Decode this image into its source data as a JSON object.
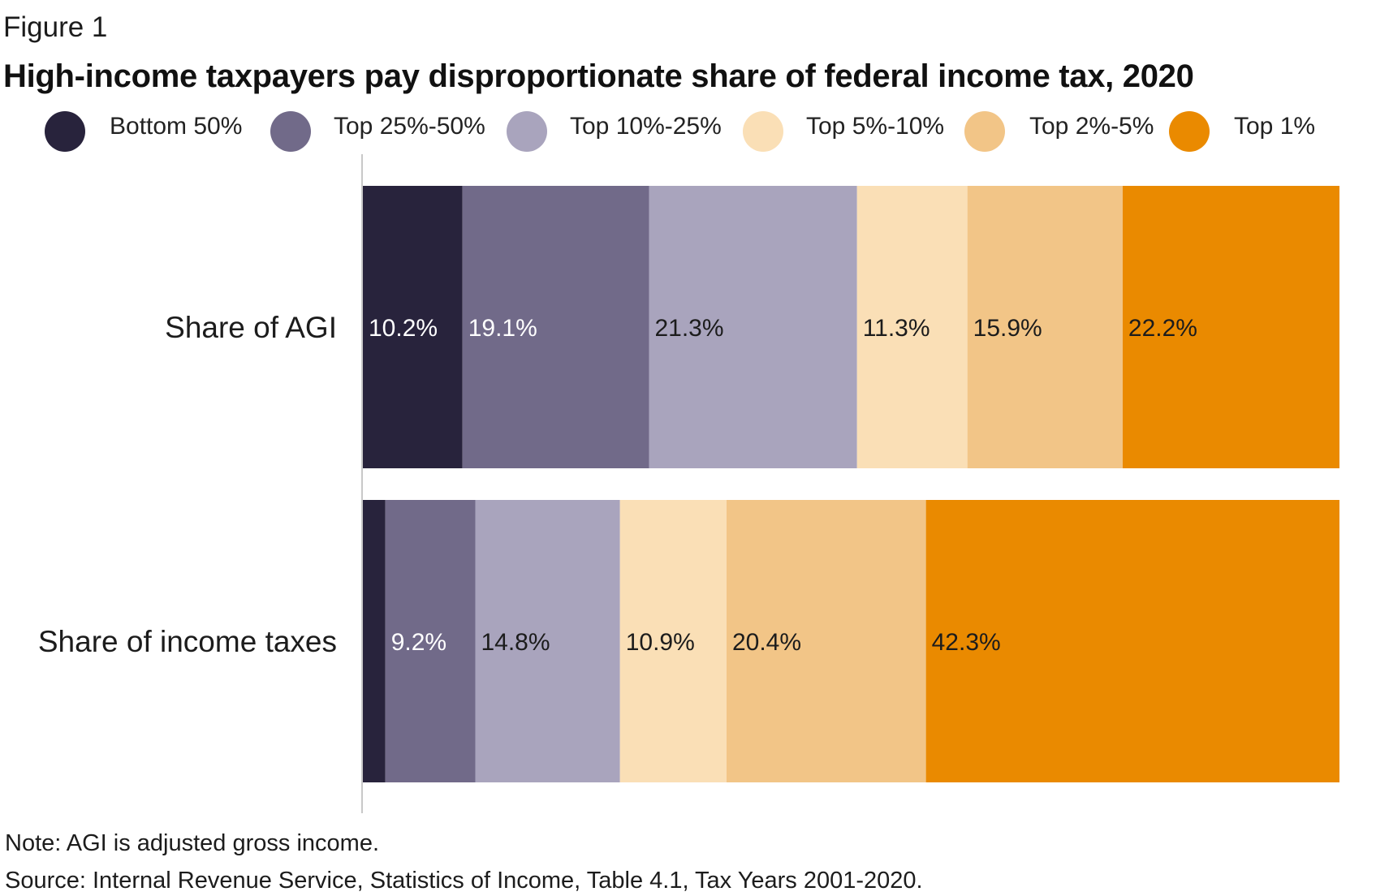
{
  "figure_label": "Figure 1",
  "title": "High-income taxpayers pay disproportionate share of federal income tax, 2020",
  "legend": [
    {
      "label": "Bottom 50%",
      "color": "#28233c"
    },
    {
      "label": "Top 25%-50%",
      "color": "#716a89"
    },
    {
      "label": "Top 10%-25%",
      "color": "#a9a4bd"
    },
    {
      "label": "Top 5%-10%",
      "color": "#fadfb6"
    },
    {
      "label": "Top 2%-5%",
      "color": "#f2c587"
    },
    {
      "label": "Top 1%",
      "color": "#ea8a00"
    }
  ],
  "chart_data": {
    "type": "bar",
    "orientation": "horizontal",
    "stacked": true,
    "categories": [
      "Share of AGI",
      "Share of income taxes"
    ],
    "series": [
      {
        "name": "Bottom 50%",
        "values": [
          10.2,
          2.3
        ],
        "labels": [
          "10.2%",
          ""
        ]
      },
      {
        "name": "Top 25%-50%",
        "values": [
          19.1,
          9.2
        ],
        "labels": [
          "19.1%",
          "9.2%"
        ]
      },
      {
        "name": "Top 10%-25%",
        "values": [
          21.3,
          14.8
        ],
        "labels": [
          "21.3%",
          "14.8%"
        ]
      },
      {
        "name": "Top 5%-10%",
        "values": [
          11.3,
          10.9
        ],
        "labels": [
          "11.3%",
          "10.9%"
        ]
      },
      {
        "name": "Top 2%-5%",
        "values": [
          15.9,
          20.4
        ],
        "labels": [
          "15.9%",
          "20.4%"
        ]
      },
      {
        "name": "Top 1%",
        "values": [
          22.2,
          42.3
        ],
        "labels": [
          "22.2%",
          "42.3%"
        ]
      }
    ],
    "label_colors": [
      "#ffffff",
      "#ffffff",
      "#1c1c1c",
      "#1c1c1c",
      "#1c1c1c",
      "#1c1c1c"
    ],
    "xlim": [
      0,
      100
    ],
    "grid": false,
    "legend_position": "top"
  },
  "note": "Note: AGI is adjusted gross income.",
  "source": "Source: Internal Revenue Service, Statistics of Income, Table 4.1, Tax Years 2001-2020."
}
